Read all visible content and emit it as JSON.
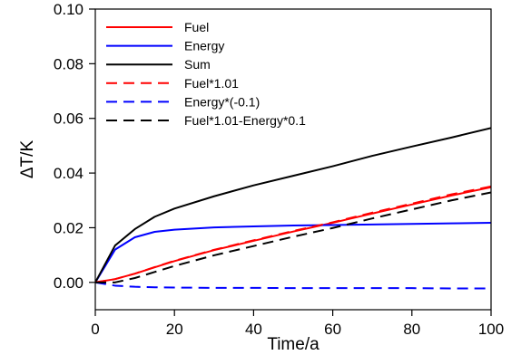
{
  "chart_data": {
    "type": "line",
    "xlabel": "Time/a",
    "ylabel": "ΔT/K",
    "xlim": [
      0,
      100
    ],
    "ylim": [
      -0.01,
      0.1
    ],
    "xticks": [
      0,
      20,
      40,
      60,
      80,
      100
    ],
    "xtick_labels": [
      "0",
      "20",
      "40",
      "60",
      "80",
      "100"
    ],
    "yticks": [
      0.0,
      0.02,
      0.04,
      0.06,
      0.08,
      0.1
    ],
    "ytick_labels": [
      "0.00",
      "0.02",
      "0.04",
      "0.06",
      "0.08",
      "0.10"
    ],
    "grid": false,
    "legend_position": "top-left",
    "x": [
      0,
      5,
      10,
      15,
      20,
      30,
      40,
      50,
      60,
      70,
      80,
      90,
      100
    ],
    "series": [
      {
        "name": "Fuel",
        "color": "#ff0000",
        "dash": "solid",
        "values": [
          0.0,
          0.0012,
          0.0032,
          0.0055,
          0.0078,
          0.0118,
          0.0152,
          0.0186,
          0.0218,
          0.0252,
          0.0285,
          0.0318,
          0.0348
        ]
      },
      {
        "name": "Energy",
        "color": "#0000ff",
        "dash": "solid",
        "values": [
          0.0,
          0.012,
          0.0165,
          0.0185,
          0.0193,
          0.0201,
          0.0205,
          0.0208,
          0.021,
          0.0212,
          0.0214,
          0.0216,
          0.0218
        ]
      },
      {
        "name": "Sum",
        "color": "#000000",
        "dash": "solid",
        "values": [
          0.0,
          0.0135,
          0.0195,
          0.024,
          0.027,
          0.0315,
          0.0355,
          0.039,
          0.0425,
          0.0463,
          0.0497,
          0.053,
          0.0565
        ]
      },
      {
        "name": "Fuel*1.01",
        "color": "#ff0000",
        "dash": "dashed",
        "values": [
          0.0,
          0.0012,
          0.0032,
          0.0056,
          0.0079,
          0.0119,
          0.0154,
          0.0188,
          0.022,
          0.0255,
          0.0288,
          0.0322,
          0.0351
        ]
      },
      {
        "name": "Energy*(-0.1)",
        "color": "#0000ff",
        "dash": "dashed",
        "values": [
          0.0,
          -0.0012,
          -0.0016,
          -0.0018,
          -0.0019,
          -0.002,
          -0.002,
          -0.0021,
          -0.0021,
          -0.0021,
          -0.0021,
          -0.0022,
          -0.0022
        ]
      },
      {
        "name": "Fuel*1.01-Energy*0.1",
        "color": "#000000",
        "dash": "dashed",
        "values": [
          0.0,
          0.0,
          0.0016,
          0.0038,
          0.006,
          0.0099,
          0.0133,
          0.0167,
          0.0199,
          0.0234,
          0.0267,
          0.03,
          0.0329
        ]
      }
    ]
  }
}
